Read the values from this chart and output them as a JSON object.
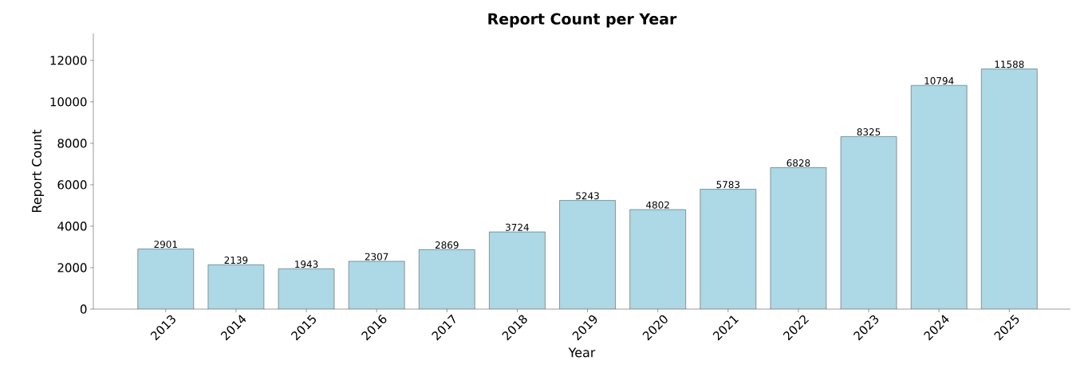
{
  "chart_data": {
    "type": "bar",
    "title": "Report Count per Year",
    "xlabel": "Year",
    "ylabel": "Report Count",
    "categories": [
      "2013",
      "2014",
      "2015",
      "2016",
      "2017",
      "2018",
      "2019",
      "2020",
      "2021",
      "2022",
      "2023",
      "2024",
      "2025"
    ],
    "values": [
      2901,
      2139,
      1943,
      2307,
      2869,
      3724,
      5243,
      4802,
      5783,
      6828,
      8325,
      10794,
      11588
    ],
    "color": "#add8e6",
    "ylim": [
      0,
      13300
    ],
    "yticks": [
      0,
      2000,
      4000,
      6000,
      8000,
      10000,
      12000
    ],
    "data_labels": true,
    "grid": false
  }
}
